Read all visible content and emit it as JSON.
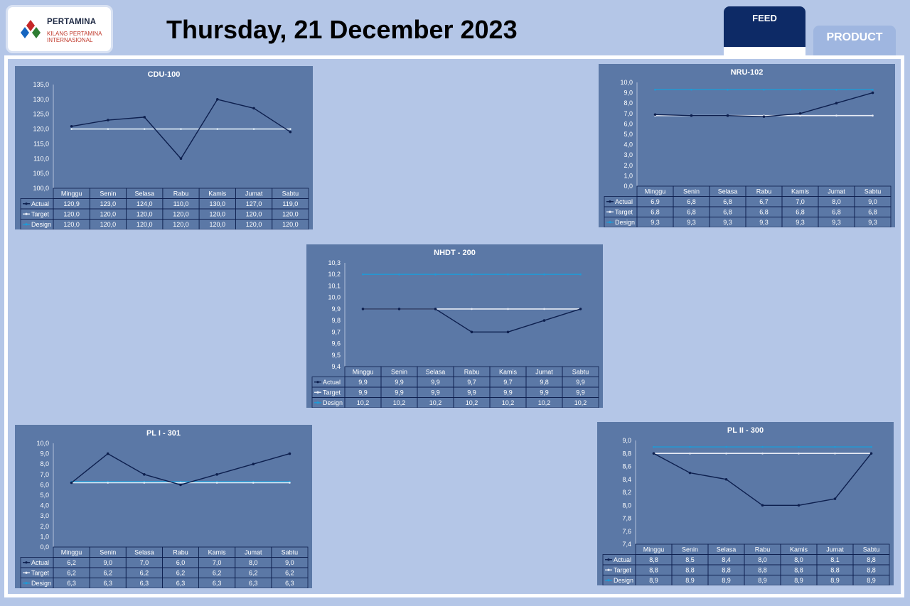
{
  "header": {
    "logo_name": "PERTAMINA",
    "logo_sub_1": "KILANG PERTAMINA",
    "logo_sub_2": "INTERNASIONAL",
    "date_title": "Thursday, 21 December 2023",
    "tab_feed": "FEED",
    "tab_product": "PRODUCT"
  },
  "colors": {
    "actual": "#0d1f4e",
    "target": "#e8ecf5",
    "design": "#1e9bd7",
    "chart_bg": "#5b78a6",
    "tab_active": "#0d2a66",
    "tab_inactive": "#9fb6e0"
  },
  "chart_data": [
    {
      "type": "line",
      "title": "CDU-100",
      "categories": [
        "Minggu",
        "Senin",
        "Selasa",
        "Rabu",
        "Kamis",
        "Jumat",
        "Sabtu"
      ],
      "ylim": [
        100,
        135
      ],
      "ytick_step": 5,
      "series": [
        {
          "name": "Actual",
          "values": [
            120.9,
            123.0,
            124.0,
            110.0,
            130.0,
            127.0,
            119.0
          ],
          "labels": [
            "120,9",
            "123,0",
            "124,0",
            "110,0",
            "130,0",
            "127,0",
            "119,0"
          ]
        },
        {
          "name": "Target",
          "values": [
            120.0,
            120.0,
            120.0,
            120.0,
            120.0,
            120.0,
            120.0
          ],
          "labels": [
            "120,0",
            "120,0",
            "120,0",
            "120,0",
            "120,0",
            "120,0",
            "120,0"
          ]
        },
        {
          "name": "Design",
          "values": [
            120.0,
            120.0,
            120.0,
            120.0,
            120.0,
            120.0,
            120.0
          ],
          "labels": [
            "120,0",
            "120,0",
            "120,0",
            "120,0",
            "120,0",
            "120,0",
            "120,0"
          ]
        }
      ],
      "legend": "data-table"
    },
    {
      "type": "line",
      "title": "NRU-102",
      "categories": [
        "Minggu",
        "Senin",
        "Selasa",
        "Rabu",
        "Kamis",
        "Jumat",
        "Sabtu"
      ],
      "ylim": [
        0,
        10
      ],
      "ytick_step": 1,
      "series": [
        {
          "name": "Actual",
          "values": [
            6.9,
            6.8,
            6.8,
            6.7,
            7.0,
            8.0,
            9.0
          ],
          "labels": [
            "6,9",
            "6,8",
            "6,8",
            "6,7",
            "7,0",
            "8,0",
            "9,0"
          ]
        },
        {
          "name": "Target",
          "values": [
            6.8,
            6.8,
            6.8,
            6.8,
            6.8,
            6.8,
            6.8
          ],
          "labels": [
            "6,8",
            "6,8",
            "6,8",
            "6,8",
            "6,8",
            "6,8",
            "6,8"
          ]
        },
        {
          "name": "Design",
          "values": [
            9.3,
            9.3,
            9.3,
            9.3,
            9.3,
            9.3,
            9.3
          ],
          "labels": [
            "9,3",
            "9,3",
            "9,3",
            "9,3",
            "9,3",
            "9,3",
            "9,3"
          ]
        }
      ],
      "legend": "data-table"
    },
    {
      "type": "line",
      "title": "NHDT - 200",
      "categories": [
        "Minggu",
        "Senin",
        "Selasa",
        "Rabu",
        "Kamis",
        "Jumat",
        "Sabtu"
      ],
      "ylim": [
        9.4,
        10.3
      ],
      "ytick_step": 0.1,
      "series": [
        {
          "name": "Actual",
          "values": [
            9.9,
            9.9,
            9.9,
            9.7,
            9.7,
            9.8,
            9.9
          ],
          "labels": [
            "9,9",
            "9,9",
            "9,9",
            "9,7",
            "9,7",
            "9,8",
            "9,9"
          ]
        },
        {
          "name": "Target",
          "values": [
            9.9,
            9.9,
            9.9,
            9.9,
            9.9,
            9.9,
            9.9
          ],
          "labels": [
            "9,9",
            "9,9",
            "9,9",
            "9,9",
            "9,9",
            "9,9",
            "9,9"
          ]
        },
        {
          "name": "Design",
          "values": [
            10.2,
            10.2,
            10.2,
            10.2,
            10.2,
            10.2,
            10.2
          ],
          "labels": [
            "10,2",
            "10,2",
            "10,2",
            "10,2",
            "10,2",
            "10,2",
            "10,2"
          ]
        }
      ],
      "legend": "data-table"
    },
    {
      "type": "line",
      "title": "PL I - 301",
      "categories": [
        "Minggu",
        "Senin",
        "Selasa",
        "Rabu",
        "Kamis",
        "Jumat",
        "Sabtu"
      ],
      "ylim": [
        0,
        10
      ],
      "ytick_step": 1,
      "series": [
        {
          "name": "Actual",
          "values": [
            6.2,
            9.0,
            7.0,
            6.0,
            7.0,
            8.0,
            9.0
          ],
          "labels": [
            "6,2",
            "9,0",
            "7,0",
            "6,0",
            "7,0",
            "8,0",
            "9,0"
          ]
        },
        {
          "name": "Target",
          "values": [
            6.2,
            6.2,
            6.2,
            6.2,
            6.2,
            6.2,
            6.2
          ],
          "labels": [
            "6,2",
            "6,2",
            "6,2",
            "6,2",
            "6,2",
            "6,2",
            "6,2"
          ]
        },
        {
          "name": "Design",
          "values": [
            6.3,
            6.3,
            6.3,
            6.3,
            6.3,
            6.3,
            6.3
          ],
          "labels": [
            "6,3",
            "6,3",
            "6,3",
            "6,3",
            "6,3",
            "6,3",
            "6,3"
          ]
        }
      ],
      "legend": "data-table"
    },
    {
      "type": "line",
      "title": "PL II - 300",
      "categories": [
        "Minggu",
        "Senin",
        "Selasa",
        "Rabu",
        "Kamis",
        "Jumat",
        "Sabtu"
      ],
      "ylim": [
        7.4,
        9.0
      ],
      "ytick_step": 0.2,
      "series": [
        {
          "name": "Actual",
          "values": [
            8.8,
            8.5,
            8.4,
            8.0,
            8.0,
            8.1,
            8.8
          ],
          "labels": [
            "8,8",
            "8,5",
            "8,4",
            "8,0",
            "8,0",
            "8,1",
            "8,8"
          ]
        },
        {
          "name": "Target",
          "values": [
            8.8,
            8.8,
            8.8,
            8.8,
            8.8,
            8.8,
            8.8
          ],
          "labels": [
            "8,8",
            "8,8",
            "8,8",
            "8,8",
            "8,8",
            "8,8",
            "8,8"
          ]
        },
        {
          "name": "Design",
          "values": [
            8.9,
            8.9,
            8.9,
            8.9,
            8.9,
            8.9,
            8.9
          ],
          "labels": [
            "8,9",
            "8,9",
            "8,9",
            "8,9",
            "8,9",
            "8,9",
            "8,9"
          ]
        }
      ],
      "legend": "data-table"
    }
  ]
}
